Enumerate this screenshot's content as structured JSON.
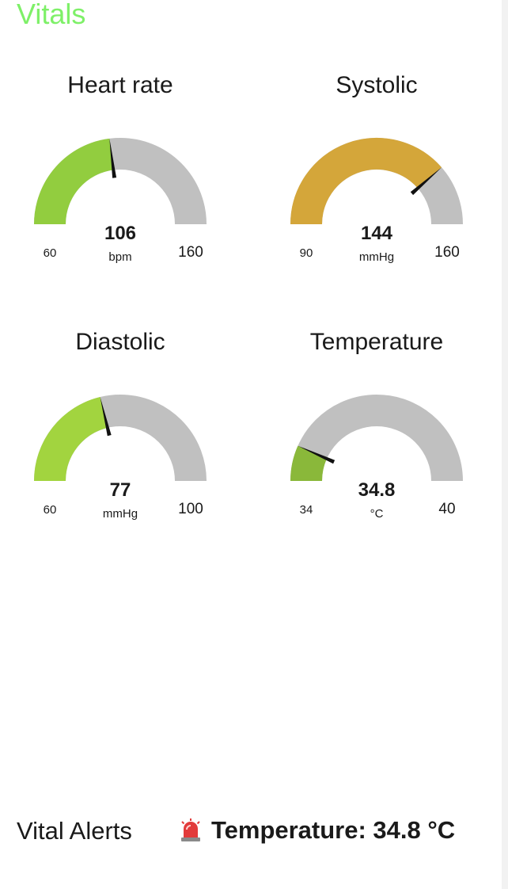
{
  "title": "Vitals",
  "gauges": [
    {
      "label": "Heart rate",
      "value": 106,
      "value_text": "106",
      "unit": "bpm",
      "min": 60,
      "max": 160,
      "min_text": "60",
      "max_text": "160",
      "color": "#92cd3f"
    },
    {
      "label": "Systolic",
      "value": 144,
      "value_text": "144",
      "unit": "mmHg",
      "min": 90,
      "max": 160,
      "min_text": "90",
      "max_text": "160",
      "color": "#d4a63a"
    },
    {
      "label": "Diastolic",
      "value": 77,
      "value_text": "77",
      "unit": "mmHg",
      "min": 60,
      "max": 100,
      "min_text": "60",
      "max_text": "100",
      "color": "#a2d43f"
    },
    {
      "label": "Temperature",
      "value": 34.8,
      "value_text": "34.8",
      "unit": "°C",
      "min": 34,
      "max": 40,
      "min_text": "34",
      "max_text": "40",
      "color": "#8ab83a"
    }
  ],
  "track_color": "#c0c0c0",
  "title_color": "#7ef068",
  "alerts": {
    "label": "Vital Alerts",
    "items": [
      {
        "icon": "siren-icon",
        "text": "Temperature: 34.8 °C"
      }
    ]
  }
}
